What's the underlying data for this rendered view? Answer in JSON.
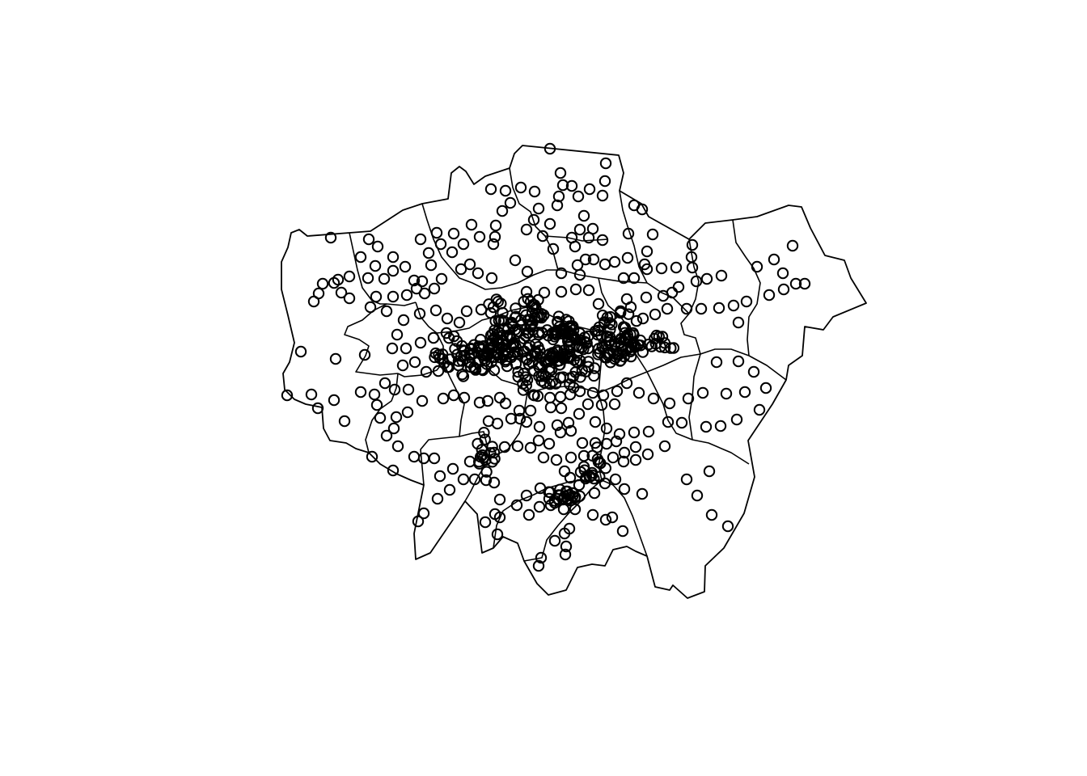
{
  "map": {
    "region": "London boroughs",
    "marker": {
      "shape": "open-circle",
      "stroke": "#000000",
      "fill": "none"
    },
    "boundary_color": "#000000",
    "background": "#ffffff"
  }
}
